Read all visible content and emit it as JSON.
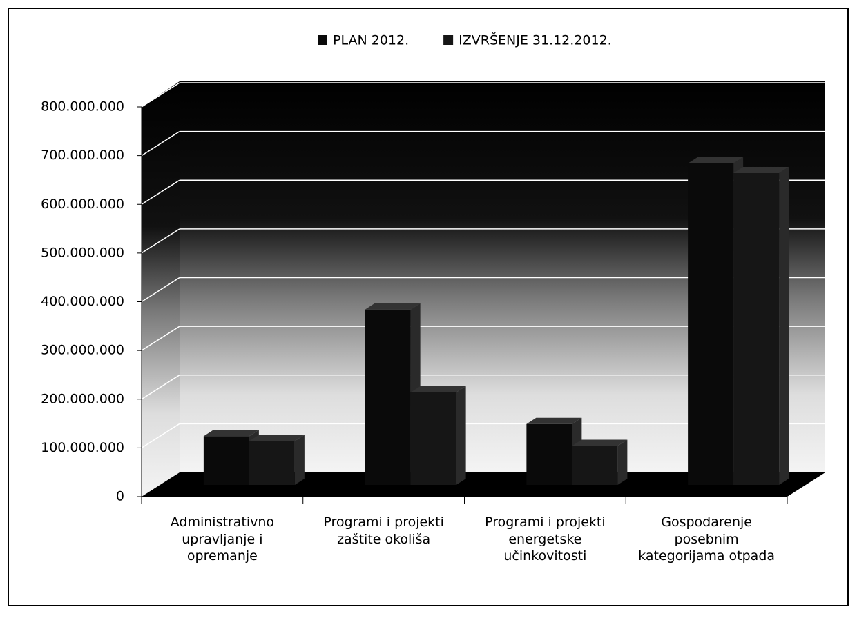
{
  "chart_data": {
    "type": "bar3d",
    "categories": [
      "Administrativno upravljanje i opremanje",
      "Programi i projekti zaštite okoliša",
      "Programi i projekti energetske učinkovitosti",
      "Gospodarenje posebnim kategorijama otpada"
    ],
    "series": [
      {
        "name": "PLAN 2012.",
        "color": "#0a0a0a",
        "values": [
          100000000,
          360000000,
          125000000,
          660000000
        ]
      },
      {
        "name": "IZVRŠENJE 31.12.2012.",
        "color": "#161616",
        "values": [
          90000000,
          190000000,
          80000000,
          640000000
        ]
      }
    ],
    "ylim": [
      0,
      800000000
    ],
    "yticks": [
      0,
      {
        "value": 100000000,
        "label": "100.000.000"
      },
      {
        "value": 200000000,
        "label": "200.000.000"
      },
      {
        "value": 300000000,
        "label": "300.000.000"
      },
      {
        "value": 400000000,
        "label": "400.000.000"
      },
      {
        "value": 500000000,
        "label": "500.000.000"
      },
      {
        "value": 600000000,
        "label": "600.000.000"
      },
      {
        "value": 700000000,
        "label": "700.000.000"
      },
      {
        "value": 800000000,
        "label": "800.000.000"
      }
    ],
    "grid": true,
    "legend": "top"
  }
}
